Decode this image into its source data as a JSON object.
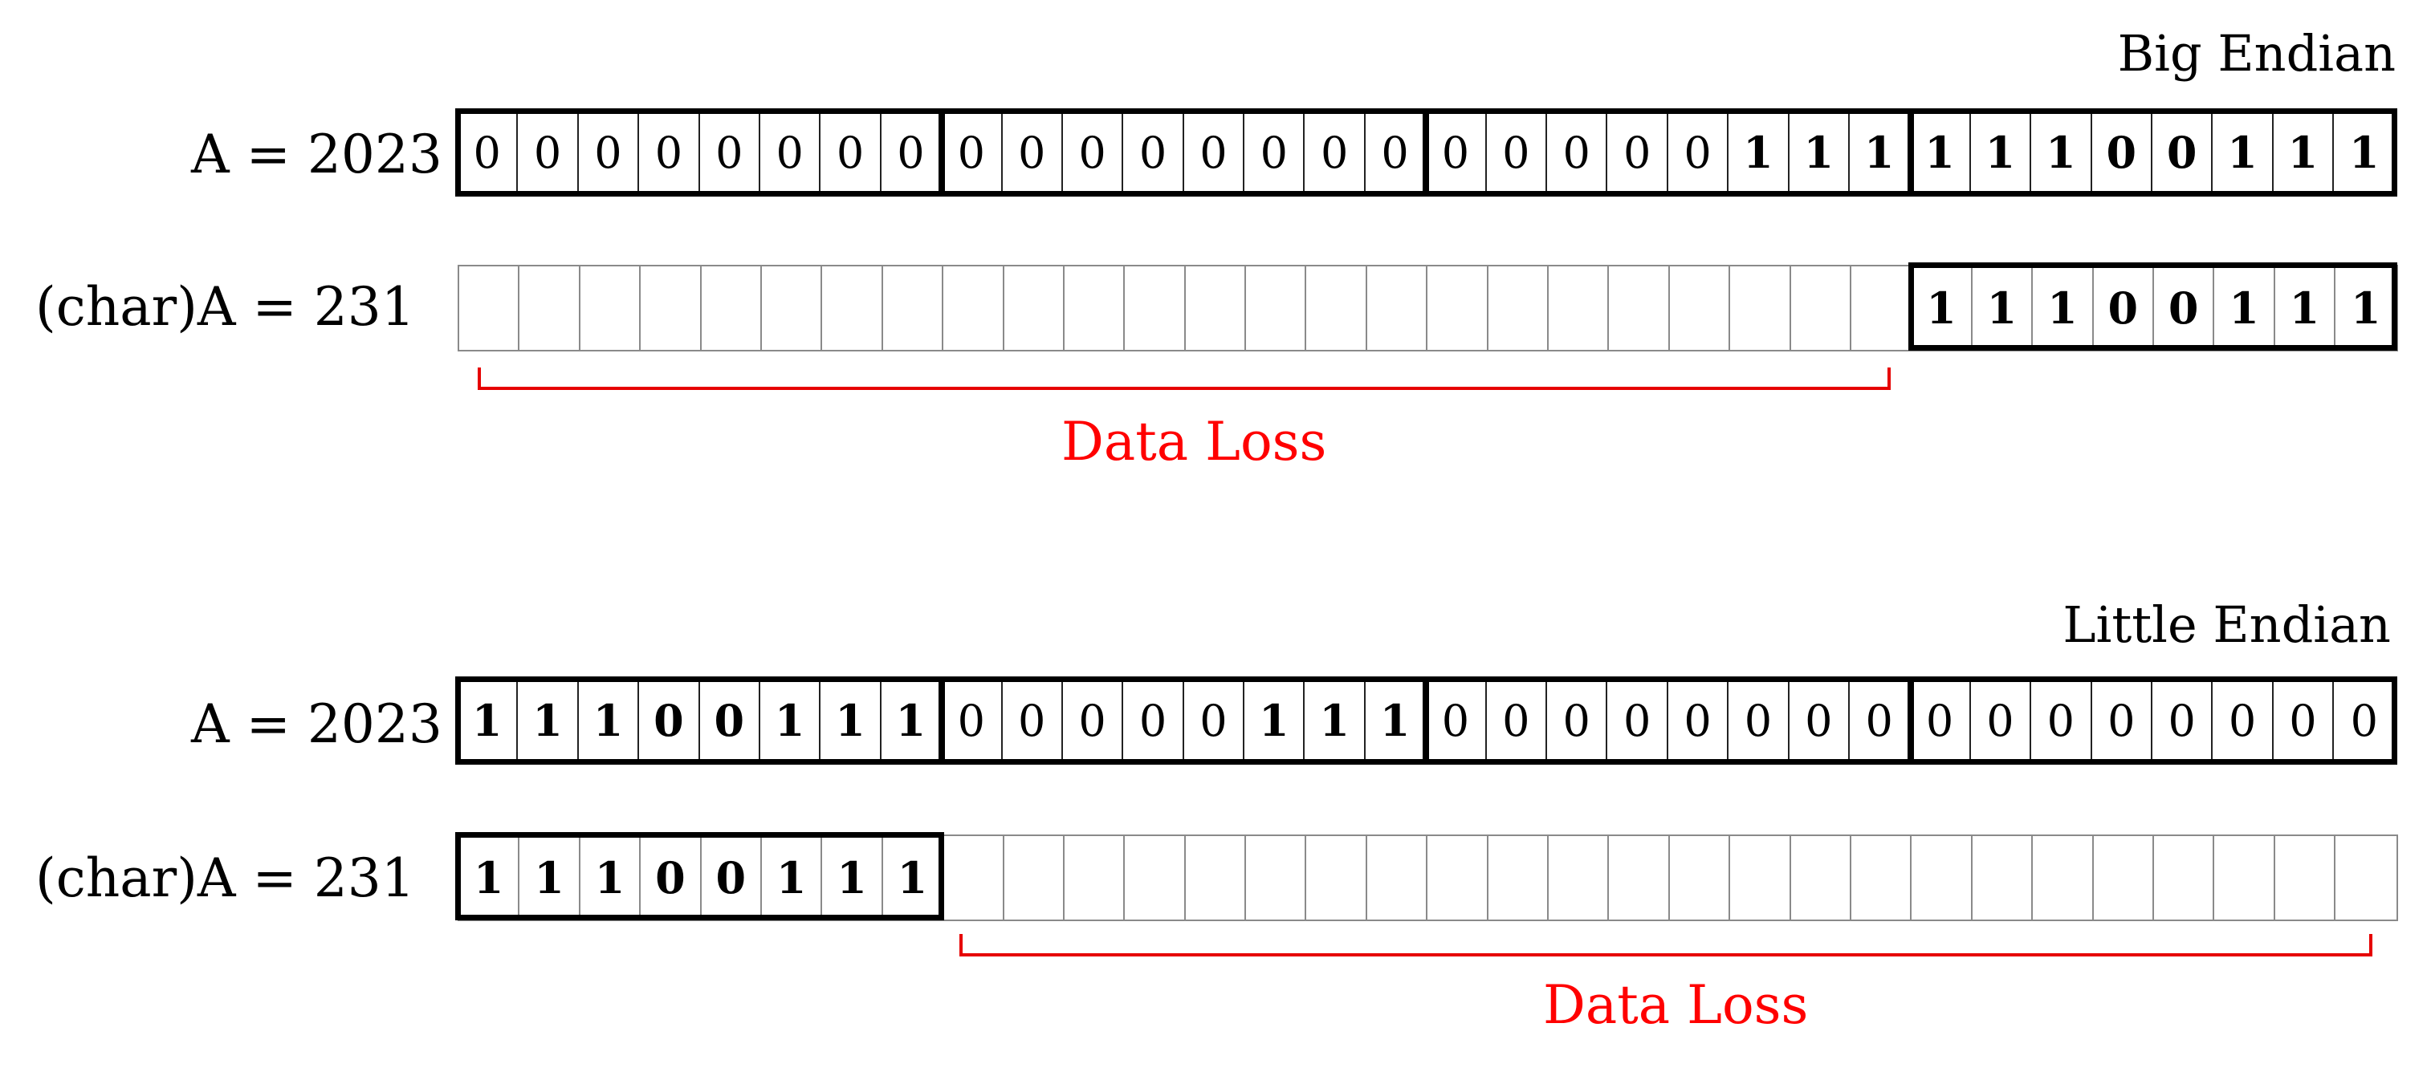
{
  "big_endian": {
    "title": "Big Endian",
    "row_a": {
      "label": "A = 2023",
      "bits": [
        "0",
        "0",
        "0",
        "0",
        "0",
        "0",
        "0",
        "0",
        "0",
        "0",
        "0",
        "0",
        "0",
        "0",
        "0",
        "0",
        "0",
        "0",
        "0",
        "0",
        "0",
        "1",
        "1",
        "1",
        "1",
        "1",
        "1",
        "0",
        "0",
        "1",
        "1",
        "1"
      ],
      "bold_from": 21
    },
    "row_char": {
      "label": "(char)A = 231",
      "bits": [
        "",
        "",
        "",
        "",
        "",
        "",
        "",
        "",
        "",
        "",
        "",
        "",
        "",
        "",
        "",
        "",
        "",
        "",
        "",
        "",
        "",
        "",
        "",
        "",
        "1",
        "1",
        "1",
        "0",
        "0",
        "1",
        "1",
        "1"
      ]
    },
    "loss_label": "Data Loss"
  },
  "little_endian": {
    "title": "Little Endian",
    "row_a": {
      "label": "A = 2023",
      "bits": [
        "1",
        "1",
        "1",
        "0",
        "0",
        "1",
        "1",
        "1",
        "0",
        "0",
        "0",
        "0",
        "0",
        "1",
        "1",
        "1",
        "0",
        "0",
        "0",
        "0",
        "0",
        "0",
        "0",
        "0",
        "0",
        "0",
        "0",
        "0",
        "0",
        "0",
        "0",
        "0"
      ]
    },
    "row_char": {
      "label": "(char)A = 231",
      "bits": [
        "1",
        "1",
        "1",
        "0",
        "0",
        "1",
        "1",
        "1",
        "",
        "",
        "",
        "",
        "",
        "",
        "",
        "",
        "",
        "",
        "",
        "",
        "",
        "",
        "",
        "",
        "",
        "",
        "",
        "",
        "",
        "",
        "",
        ""
      ]
    },
    "loss_label": "Data Loss"
  },
  "colors": {
    "loss": "#ff0000",
    "frame": "#000000",
    "grid": "#8a8a8a"
  }
}
